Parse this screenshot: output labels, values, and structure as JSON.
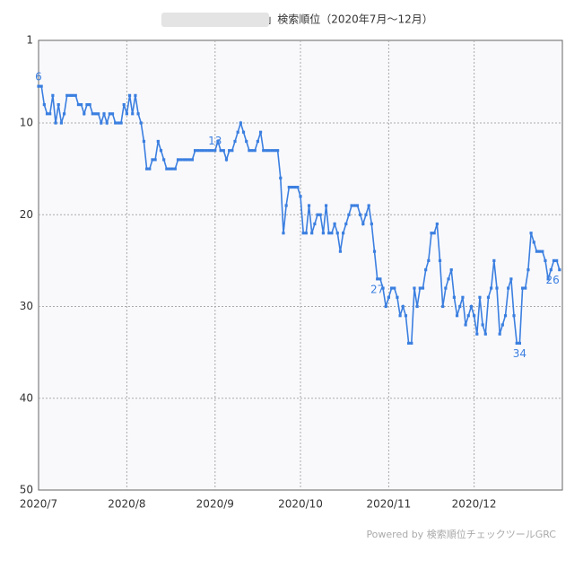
{
  "chart_data": {
    "type": "line",
    "title": "「　　　　　　　　　」検索順位（2020年7月～12月）",
    "footer": "Powered by 検索順位チェックツールGRC",
    "categories": [
      "2020/7",
      null,
      null,
      null,
      null,
      null,
      null,
      null,
      null,
      null,
      null,
      null,
      null,
      null,
      null,
      null,
      null,
      null,
      null,
      null,
      null,
      null,
      null,
      null,
      null,
      null,
      null,
      null,
      null,
      null,
      null,
      "2020/8",
      null,
      null,
      null,
      null,
      null,
      null,
      null,
      null,
      null,
      null,
      null,
      null,
      null,
      null,
      null,
      null,
      null,
      null,
      null,
      null,
      null,
      null,
      null,
      null,
      null,
      null,
      null,
      null,
      null,
      null,
      "2020/9",
      null,
      null,
      null,
      null,
      null,
      null,
      null,
      null,
      null,
      null,
      null,
      null,
      null,
      null,
      null,
      null,
      null,
      null,
      null,
      null,
      null,
      null,
      null,
      null,
      null,
      null,
      null,
      null,
      null,
      "2020/10",
      null,
      null,
      null,
      null,
      null,
      null,
      null,
      null,
      null,
      null,
      null,
      null,
      null,
      null,
      null,
      null,
      null,
      null,
      null,
      null,
      null,
      null,
      null,
      null,
      null,
      null,
      null,
      null,
      null,
      null,
      "2020/11",
      null,
      null,
      null,
      null,
      null,
      null,
      null,
      null,
      null,
      null,
      null,
      null,
      null,
      null,
      null,
      null,
      null,
      null,
      null,
      null,
      null,
      null,
      null,
      null,
      null,
      null,
      null,
      null,
      null,
      "2020/12",
      null,
      null,
      null,
      null,
      null,
      null,
      null,
      null,
      null,
      null,
      null,
      null,
      null,
      null,
      null,
      null,
      null,
      null,
      null,
      null,
      null,
      null,
      null,
      null,
      null,
      null,
      null,
      null,
      null,
      null
    ],
    "series": [
      {
        "color": "#3b7fe0",
        "values": [
          6,
          6,
          8,
          9,
          9,
          7,
          10,
          8,
          10,
          9,
          7,
          7,
          7,
          7,
          8,
          8,
          9,
          8,
          8,
          9,
          9,
          9,
          10,
          9,
          10,
          9,
          9,
          10,
          10,
          10,
          8,
          9,
          7,
          9,
          7,
          9,
          10,
          12,
          15,
          15,
          14,
          14,
          12,
          13,
          14,
          15,
          15,
          15,
          15,
          14,
          14,
          14,
          14,
          14,
          14,
          13,
          13,
          13,
          13,
          13,
          13,
          13,
          13,
          12,
          13,
          13,
          14,
          13,
          13,
          12,
          11,
          10,
          11,
          12,
          13,
          13,
          13,
          12,
          11,
          13,
          13,
          13,
          13,
          13,
          13,
          16,
          22,
          19,
          17,
          17,
          17,
          17,
          18,
          22,
          22,
          19,
          22,
          21,
          20,
          20,
          22,
          19,
          22,
          22,
          21,
          22,
          24,
          22,
          21,
          20,
          19,
          19,
          19,
          20,
          21,
          20,
          19,
          21,
          24,
          27,
          27,
          28,
          30,
          29,
          28,
          28,
          29,
          31,
          30,
          31,
          34,
          34,
          28,
          30,
          28,
          28,
          26,
          25,
          22,
          22,
          21,
          25,
          30,
          28,
          27,
          26,
          29,
          31,
          30,
          29,
          32,
          31,
          30,
          31,
          33,
          29,
          32,
          33,
          29,
          28,
          25,
          28,
          33,
          32,
          31,
          28,
          27,
          31,
          34,
          34,
          28,
          28,
          26,
          22,
          23,
          24,
          24,
          24,
          25,
          27,
          26,
          25,
          25,
          26
        ]
      }
    ],
    "ylim": [
      1,
      50
    ],
    "yticks": [
      1,
      10,
      20,
      30,
      40,
      50
    ],
    "yreverse": true,
    "grid": true
  }
}
